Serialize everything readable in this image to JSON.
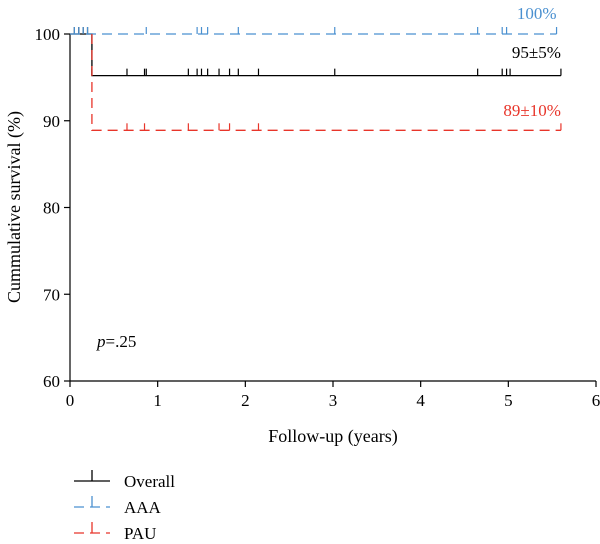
{
  "chart_data": {
    "type": "line",
    "xlabel": "Follow-up (years)",
    "ylabel": "Cummulative survival (%)",
    "xlim": [
      0,
      6
    ],
    "ylim": [
      60,
      100
    ],
    "x_ticks": [
      "0",
      "1",
      "2",
      "3",
      "4",
      "5",
      "6"
    ],
    "y_ticks": [
      "60",
      "70",
      "80",
      "90",
      "100"
    ],
    "p_value": {
      "p": "p",
      "rest": "=.25"
    },
    "series": [
      {
        "name": "Overall",
        "color": "#000000",
        "dash": "solid",
        "annotation": "95±5%",
        "steps": [
          [
            0,
            100
          ],
          [
            0.25,
            100
          ],
          [
            0.25,
            95.2
          ],
          [
            5.6,
            95.2
          ]
        ],
        "censor": [
          0.05,
          0.1,
          0.15,
          0.2,
          0.25,
          0.65,
          0.85,
          0.87,
          1.35,
          1.45,
          1.5,
          1.57,
          1.7,
          1.82,
          1.92,
          2.15,
          3.02,
          4.65,
          4.93,
          4.98,
          5.02,
          5.6
        ]
      },
      {
        "name": "AAA",
        "color": "#4a90d0",
        "dash": "dashed",
        "annotation": "100%",
        "steps": [
          [
            0,
            100
          ],
          [
            5.55,
            100
          ]
        ],
        "censor": [
          0.05,
          0.1,
          0.15,
          0.2,
          0.87,
          1.45,
          1.5,
          1.57,
          1.92,
          3.02,
          4.65,
          4.93,
          4.98,
          5.55
        ]
      },
      {
        "name": "PAU",
        "color": "#e8352a",
        "dash": "dashed",
        "annotation": "89±10%",
        "steps": [
          [
            0.25,
            100
          ],
          [
            0.25,
            88.9
          ],
          [
            5.6,
            88.9
          ]
        ],
        "censor": [
          0.65,
          0.85,
          1.35,
          1.7,
          1.82,
          2.15,
          5.6
        ]
      }
    ]
  }
}
